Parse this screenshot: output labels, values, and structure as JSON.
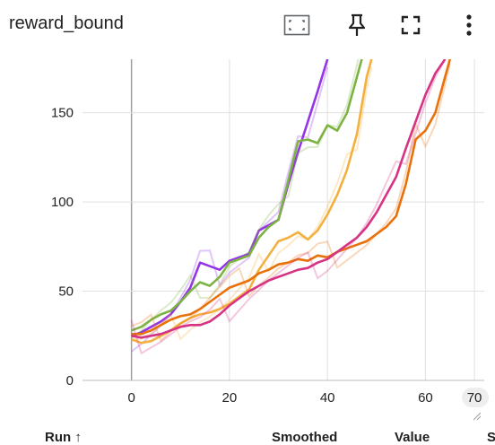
{
  "card": {
    "title": "reward_bound"
  },
  "toolbar": {
    "icons": [
      "fit-domain-icon",
      "pin-icon",
      "fullscreen-icon",
      "more-vert-icon"
    ]
  },
  "table_header": {
    "run_label": "Run ↑",
    "smoothed_label": "Smoothed",
    "value_label": "Value",
    "step_label": "S"
  },
  "chart_data": {
    "type": "line",
    "xlim": [
      -10,
      72
    ],
    "ylim": [
      0,
      180
    ],
    "x_ticks": [
      0,
      20,
      40,
      60,
      70
    ],
    "x_tick_labels": [
      "0",
      "20",
      "40",
      "60",
      "70"
    ],
    "y_ticks": [
      0,
      50,
      100,
      150
    ],
    "y_tick_labels": [
      "0",
      "50",
      "100",
      "150"
    ],
    "grid": true,
    "series": [
      {
        "color": "#9334e6",
        "x": [
          0,
          2,
          4,
          6,
          8,
          10,
          12,
          14,
          16,
          18,
          20,
          22,
          24,
          26,
          28,
          30,
          32,
          34,
          36,
          38,
          40
        ],
        "y": [
          25,
          27,
          30,
          33,
          37,
          44,
          52,
          66,
          64,
          62,
          67,
          69,
          71,
          84,
          87,
          90,
          110,
          128,
          145,
          162,
          180
        ]
      },
      {
        "color": "#7cb342",
        "x": [
          0,
          2,
          4,
          6,
          8,
          10,
          12,
          14,
          16,
          18,
          20,
          22,
          24,
          26,
          28,
          30,
          32,
          34,
          36,
          38,
          40,
          42,
          44,
          46,
          47
        ],
        "y": [
          28,
          30,
          34,
          37,
          39,
          44,
          50,
          55,
          53,
          58,
          66,
          68,
          70,
          80,
          86,
          90,
          112,
          134,
          135,
          133,
          143,
          140,
          150,
          170,
          180
        ]
      },
      {
        "color": "#f4b03f",
        "x": [
          0,
          2,
          4,
          6,
          8,
          10,
          12,
          14,
          16,
          18,
          20,
          22,
          24,
          26,
          28,
          30,
          32,
          34,
          36,
          38,
          40,
          42,
          44,
          46,
          48,
          49
        ],
        "y": [
          23,
          21,
          22,
          25,
          28,
          32,
          35,
          37,
          38,
          40,
          43,
          47,
          51,
          62,
          70,
          78,
          80,
          83,
          79,
          84,
          93,
          104,
          118,
          138,
          170,
          180
        ]
      },
      {
        "color": "#e8710a",
        "x": [
          0,
          2,
          4,
          6,
          8,
          10,
          12,
          14,
          16,
          18,
          20,
          22,
          24,
          26,
          28,
          30,
          32,
          34,
          36,
          38,
          40,
          42,
          44,
          46,
          48,
          50,
          52,
          54,
          56,
          58,
          60,
          62,
          64,
          65
        ],
        "y": [
          26,
          26,
          28,
          31,
          34,
          36,
          37,
          40,
          44,
          48,
          52,
          54,
          56,
          60,
          62,
          65,
          66,
          68,
          67,
          70,
          69,
          72,
          74,
          76,
          78,
          82,
          86,
          92,
          110,
          135,
          140,
          150,
          170,
          180
        ]
      },
      {
        "color": "#d63384",
        "x": [
          0,
          2,
          4,
          6,
          8,
          10,
          12,
          14,
          16,
          18,
          20,
          22,
          24,
          26,
          28,
          30,
          32,
          34,
          36,
          38,
          40,
          42,
          44,
          46,
          48,
          50,
          52,
          54,
          56,
          58,
          60,
          62,
          64
        ],
        "y": [
          25,
          24,
          25,
          26,
          28,
          30,
          31,
          31,
          33,
          37,
          42,
          46,
          50,
          53,
          56,
          58,
          60,
          62,
          63,
          66,
          68,
          72,
          76,
          80,
          86,
          94,
          104,
          114,
          130,
          145,
          160,
          172,
          180
        ]
      }
    ]
  }
}
